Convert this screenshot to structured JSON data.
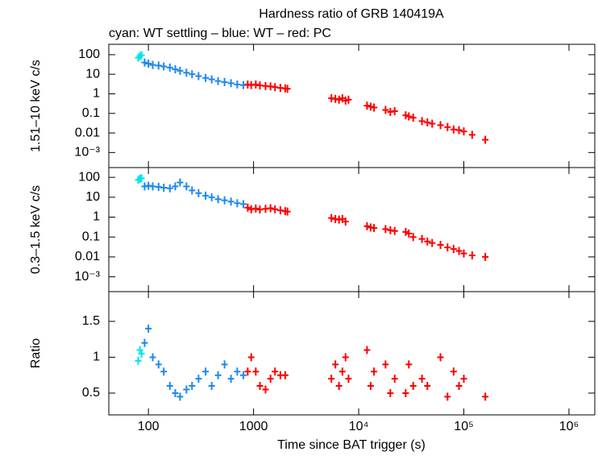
{
  "chart_data": [
    {
      "type": "scatter",
      "title": "Hardness ratio of GRB 140419A",
      "subtitle": "cyan: WT settling – blue: WT – red: PC",
      "ylabel": "1.51–10 keV c/s",
      "log_y": true,
      "ylim": [
        0.00017,
        340
      ],
      "yticks": [
        100,
        10,
        1,
        0.1,
        0.01,
        {
          "value": 0.001,
          "label": "10⁻³"
        }
      ],
      "series": [
        {
          "color": "#00e5ee",
          "x": [
            80,
            83,
            86
          ],
          "values": [
            70,
            85,
            95
          ]
        },
        {
          "color": "#1e88f0",
          "x": [
            92,
            100,
            110,
            125,
            140,
            160,
            180,
            200,
            230,
            260,
            300,
            350,
            400,
            460,
            530,
            610,
            700,
            800
          ],
          "values": [
            40,
            35,
            30,
            28,
            25,
            22,
            18,
            15,
            12,
            10,
            8,
            6.5,
            5.5,
            4.5,
            4,
            3.5,
            3,
            2.8
          ]
        },
        {
          "color": "#ff0000",
          "x": [
            880,
            950,
            1050,
            1150,
            1300,
            1450,
            1600,
            1800,
            2000,
            2100,
            5500,
            6000,
            6500,
            7000,
            7500,
            8000,
            12000,
            13000,
            14000,
            18000,
            20000,
            22000,
            28000,
            30000,
            33000,
            40000,
            45000,
            50000,
            60000,
            70000,
            80000,
            90000,
            100000,
            120000,
            160000
          ],
          "values": [
            3,
            2.8,
            3,
            2.7,
            2.5,
            2.4,
            2.2,
            2,
            1.9,
            1.8,
            0.6,
            0.55,
            0.5,
            0.6,
            0.45,
            0.5,
            0.25,
            0.22,
            0.2,
            0.15,
            0.12,
            0.13,
            0.08,
            0.07,
            0.06,
            0.04,
            0.035,
            0.03,
            0.025,
            0.02,
            0.015,
            0.014,
            0.012,
            0.008,
            0.0045
          ]
        }
      ]
    },
    {
      "type": "scatter",
      "ylabel": "0.3–1.5 keV c/s",
      "log_y": true,
      "ylim": [
        0.00018,
        310
      ],
      "yticks": [
        100,
        10,
        1,
        0.1,
        0.01,
        {
          "value": 0.001,
          "label": "10⁻³"
        }
      ],
      "series": [
        {
          "color": "#00e5ee",
          "x": [
            80,
            83,
            86
          ],
          "values": [
            75,
            85,
            90
          ]
        },
        {
          "color": "#1e88f0",
          "x": [
            92,
            100,
            110,
            125,
            140,
            160,
            180,
            200,
            230,
            260,
            300,
            350,
            400,
            460,
            530,
            610,
            700,
            800
          ],
          "values": [
            35,
            38,
            35,
            33,
            30,
            28,
            35,
            55,
            35,
            22,
            16,
            12,
            10,
            8,
            7,
            6,
            5,
            4.5
          ]
        },
        {
          "color": "#ff0000",
          "x": [
            880,
            950,
            1050,
            1150,
            1300,
            1450,
            1600,
            1800,
            2000,
            2100,
            5500,
            6000,
            6500,
            7000,
            7500,
            12000,
            13000,
            14000,
            18000,
            20000,
            22000,
            28000,
            30000,
            33000,
            40000,
            45000,
            50000,
            60000,
            70000,
            80000,
            90000,
            100000,
            120000,
            160000
          ],
          "values": [
            3,
            2.5,
            2.7,
            2.4,
            2.6,
            2.8,
            2.5,
            2.2,
            2,
            1.9,
            0.9,
            0.8,
            0.75,
            0.8,
            0.6,
            0.35,
            0.3,
            0.28,
            0.25,
            0.22,
            0.2,
            0.18,
            0.15,
            0.1,
            0.08,
            0.06,
            0.05,
            0.04,
            0.03,
            0.025,
            0.02,
            0.015,
            0.012,
            0.01
          ]
        }
      ]
    },
    {
      "type": "scatter",
      "ylabel": "Ratio",
      "xlabel": "Time since BAT trigger (s)",
      "log_x": true,
      "xlim": [
        42,
        1760000
      ],
      "xticks": [
        100,
        1000,
        {
          "value": 10000,
          "label": "10⁴"
        },
        {
          "value": 100000,
          "label": "10⁵"
        },
        {
          "value": 1000000,
          "label": "10⁶"
        }
      ],
      "log_y": false,
      "ylim": [
        0.196,
        1.915
      ],
      "yticks": [
        0.5,
        1,
        1.5
      ],
      "series": [
        {
          "color": "#00e5ee",
          "x": [
            80,
            83,
            86
          ],
          "values": [
            0.95,
            1.1,
            1.05
          ]
        },
        {
          "color": "#1e88f0",
          "x": [
            92,
            100,
            110,
            125,
            140,
            160,
            180,
            200,
            230,
            260,
            300,
            350,
            400,
            460,
            530,
            610,
            700,
            800
          ],
          "values": [
            1.2,
            1.4,
            1.0,
            0.9,
            0.8,
            0.6,
            0.5,
            0.45,
            0.55,
            0.6,
            0.7,
            0.8,
            0.6,
            0.75,
            0.9,
            0.7,
            0.8,
            0.75
          ]
        },
        {
          "color": "#ff0000",
          "x": [
            880,
            950,
            1050,
            1150,
            1300,
            1450,
            1600,
            1800,
            2000,
            5500,
            6000,
            6500,
            7000,
            7500,
            8000,
            12000,
            13000,
            14000,
            18000,
            20000,
            22000,
            28000,
            30000,
            33000,
            40000,
            45000,
            60000,
            70000,
            80000,
            90000,
            100000,
            160000
          ],
          "values": [
            0.8,
            1.0,
            0.8,
            0.6,
            0.55,
            0.7,
            0.8,
            0.75,
            0.75,
            0.7,
            0.9,
            0.6,
            0.8,
            1.0,
            0.7,
            1.1,
            0.6,
            0.8,
            0.9,
            0.5,
            0.7,
            0.5,
            0.9,
            0.6,
            0.7,
            0.6,
            1.0,
            0.45,
            0.8,
            0.6,
            0.7,
            0.45
          ]
        }
      ]
    }
  ]
}
